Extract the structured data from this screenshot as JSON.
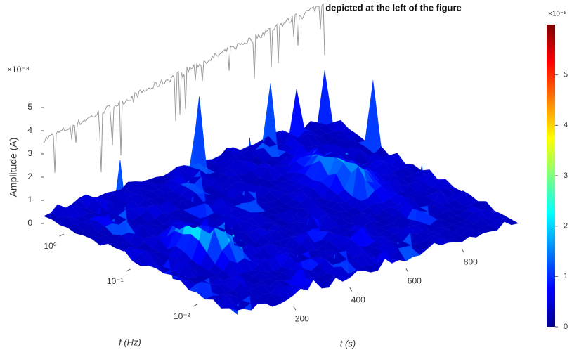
{
  "chart_data": {
    "type": "surface",
    "title": "depicted at the left of the figure",
    "zlabel": "Amplitude (A)",
    "zexponent": "×10⁻⁸",
    "zlim": [
      0,
      6
    ],
    "zticks": [
      0,
      1,
      2,
      3,
      4,
      5
    ],
    "xlabel": "t (s)",
    "xlim": [
      0,
      1000
    ],
    "xticks": [
      200,
      400,
      600,
      800
    ],
    "ylabel": "f (Hz)",
    "ylog": true,
    "ylim": [
      0.0025,
      2
    ],
    "yticks": [
      {
        "value": 1,
        "label": "10⁰"
      },
      {
        "value": 0.1,
        "label": "10⁻¹"
      },
      {
        "value": 0.01,
        "label": "10⁻²"
      }
    ],
    "colorbar": {
      "exponent": "×10⁻⁸",
      "lim": [
        0,
        6
      ],
      "ticks": [
        0,
        1,
        2,
        3,
        4,
        5
      ]
    }
  }
}
